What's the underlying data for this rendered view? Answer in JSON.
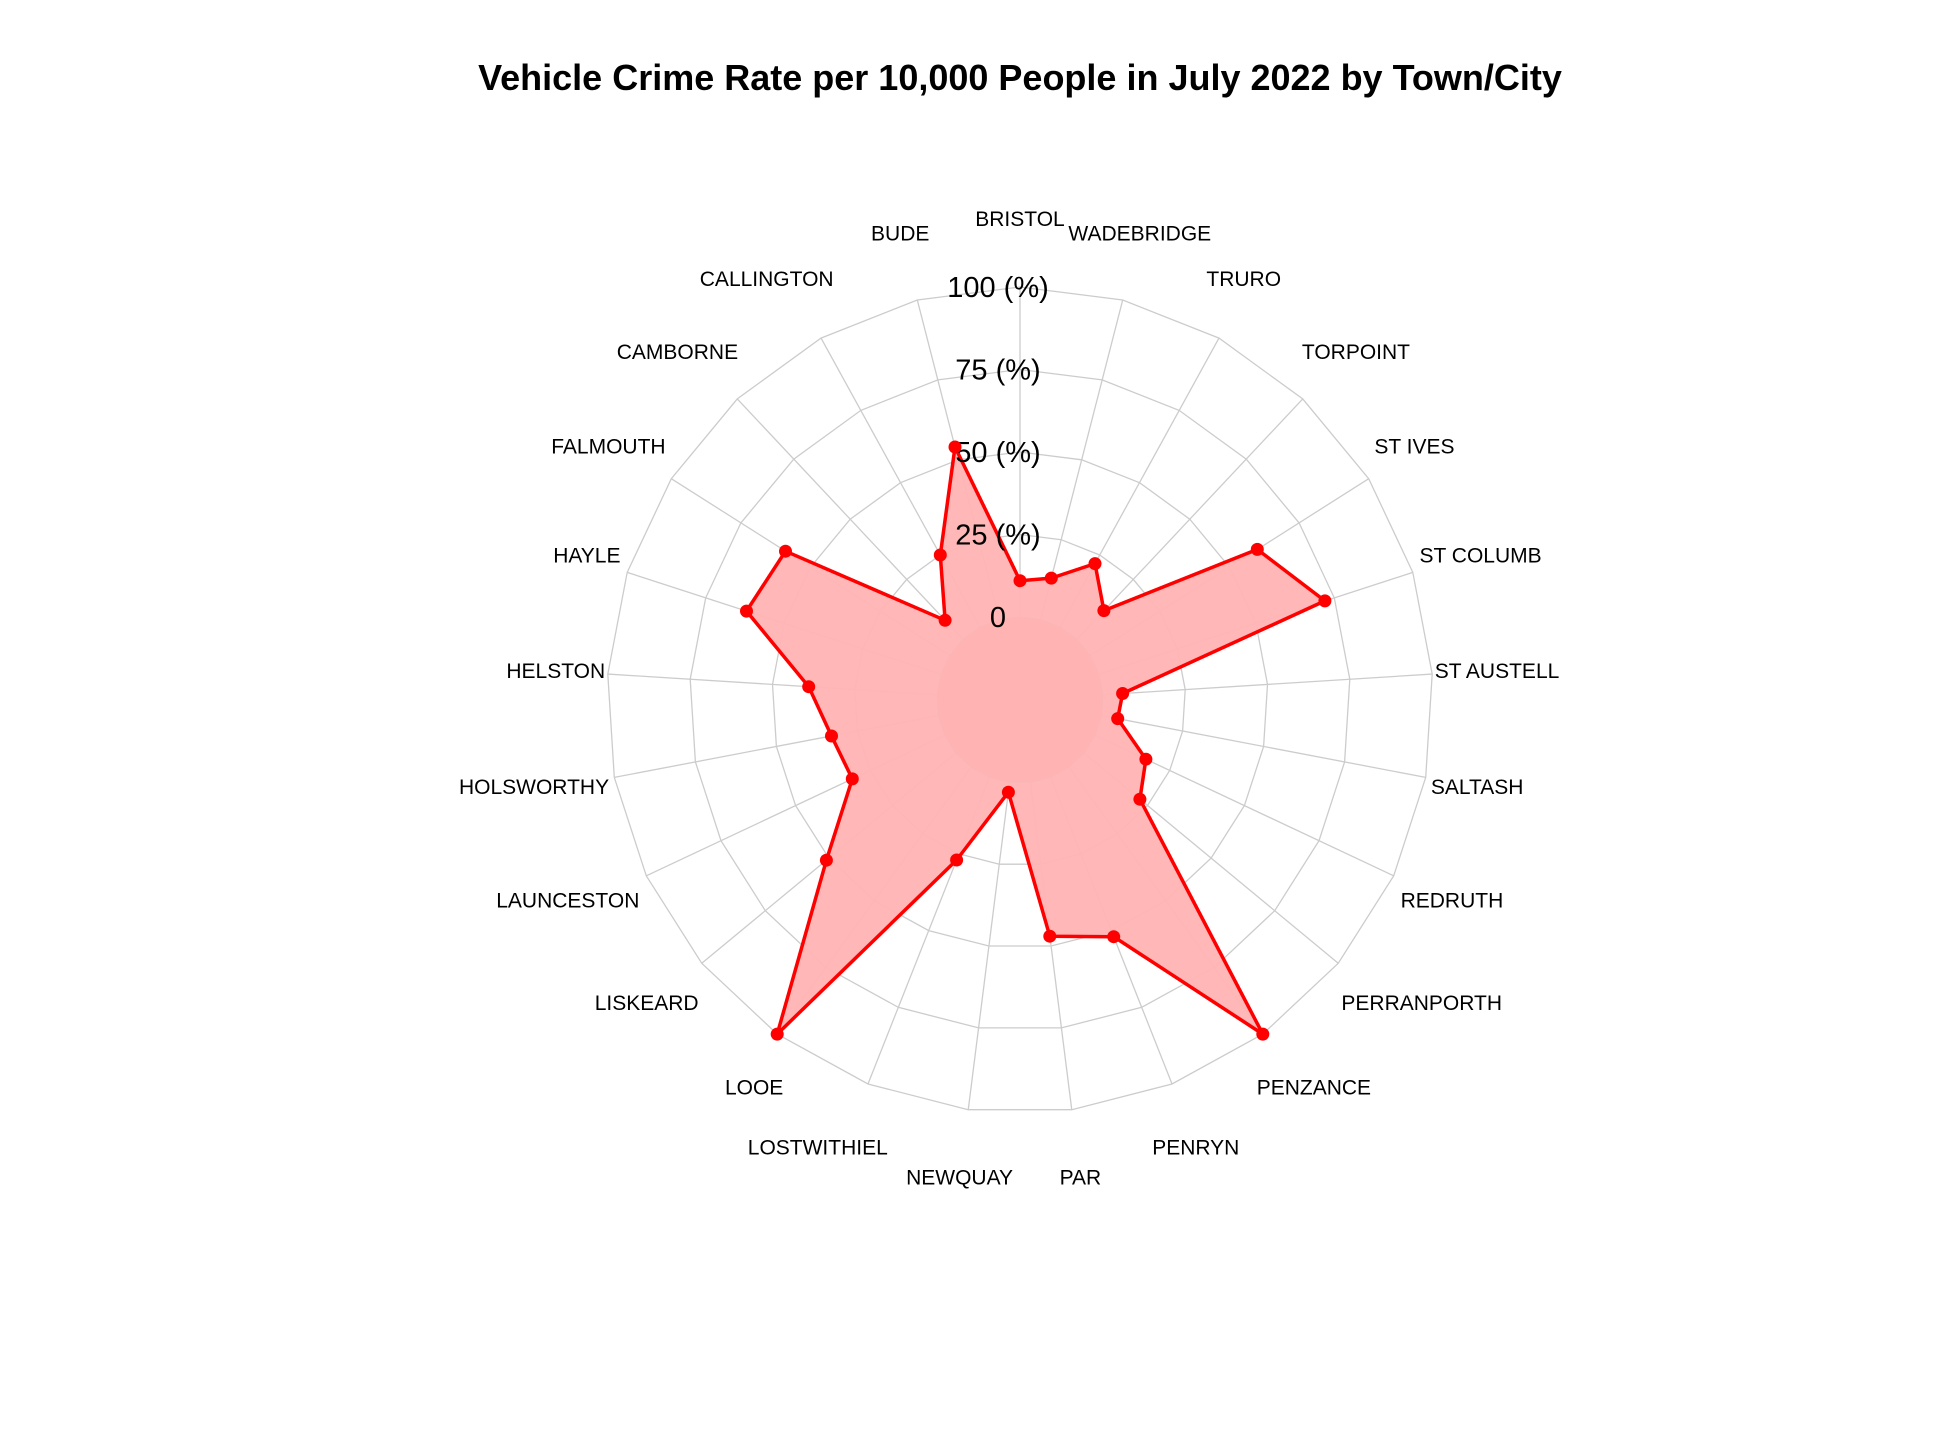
{
  "chart_data": {
    "type": "radar",
    "title": "Vehicle Crime Rate per 10,000 People in July 2022 by Town/City",
    "categories": [
      "BRISTOL",
      "WADEBRIDGE",
      "TRURO",
      "TORPOINT",
      "ST IVES",
      "ST COLUMB",
      "ST AUSTELL",
      "SALTASH",
      "REDRUTH",
      "PERRANPORTH",
      "PENZANCE",
      "PENRYN",
      "PAR",
      "NEWQUAY",
      "LOSTWITHIEL",
      "LOOE",
      "LISKEARD",
      "LAUNCESTON",
      "HOLSWORTHY",
      "HELSTON",
      "HAYLE",
      "FALMOUTH",
      "CAMBORNE",
      "CALLINGTON",
      "BUDE"
    ],
    "series": [
      {
        "values": [
          11,
          13,
          22,
          12,
          60,
          72,
          6,
          5,
          17,
          22,
          100,
          52,
          47,
          3,
          27,
          100,
          51,
          31,
          33,
          39,
          62,
          59,
          8,
          25,
          54
        ]
      }
    ],
    "axis_ticks": [
      "0",
      "25 (%)",
      "50 (%)",
      "75 (%)",
      "100 (%)"
    ],
    "rlim": [
      0,
      100
    ],
    "colors": {
      "line": "#ff0000",
      "fill": "#ffb3b3",
      "grid": "#cccccc"
    }
  }
}
